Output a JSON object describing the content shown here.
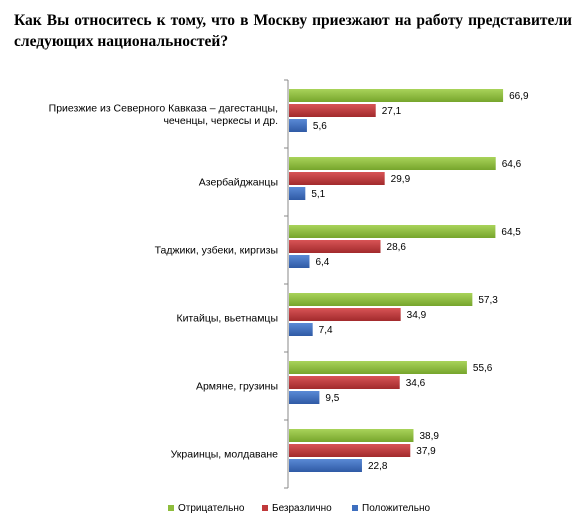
{
  "title": "Как Вы относитесь к тому, что в Москву приезжают на работу представители следующих национальностей?",
  "chart_data": {
    "type": "bar",
    "orientation": "horizontal",
    "title": "Как Вы относитесь к тому, что в Москву приезжают на работу представители следующих национальностей?",
    "categories": [
      [
        "Приезжие из Северного Кавказа – дагестанцы,",
        "чеченцы, черкесы и др."
      ],
      [
        "Азербайджанцы"
      ],
      [
        "Таджики, узбеки, киргизы"
      ],
      [
        "Китайцы, вьетнамцы"
      ],
      [
        "Армяне, грузины"
      ],
      [
        "Украинцы, молдаване"
      ]
    ],
    "series": [
      {
        "name": "Отрицательно",
        "color": "#8ebd3c",
        "values": [
          66.9,
          64.6,
          64.5,
          57.3,
          55.6,
          38.9
        ],
        "labels": [
          "66,9",
          "64,6",
          "64,5",
          "57,3",
          "55,6",
          "38,9"
        ]
      },
      {
        "name": "Безразлично",
        "color": "#c0393b",
        "values": [
          27.1,
          29.9,
          28.6,
          34.9,
          34.6,
          37.9
        ],
        "labels": [
          "27,1",
          "29,9",
          "28,6",
          "34,9",
          "34,6",
          "37,9"
        ]
      },
      {
        "name": "Положительно",
        "color": "#3e6fbf",
        "values": [
          5.6,
          5.1,
          6.4,
          7.4,
          9.5,
          22.8
        ],
        "labels": [
          "5,6",
          "5,1",
          "6,4",
          "7,4",
          "9,5",
          "22,8"
        ]
      }
    ],
    "xlim": [
      0,
      70
    ],
    "grid": false,
    "legend_position": "bottom"
  }
}
